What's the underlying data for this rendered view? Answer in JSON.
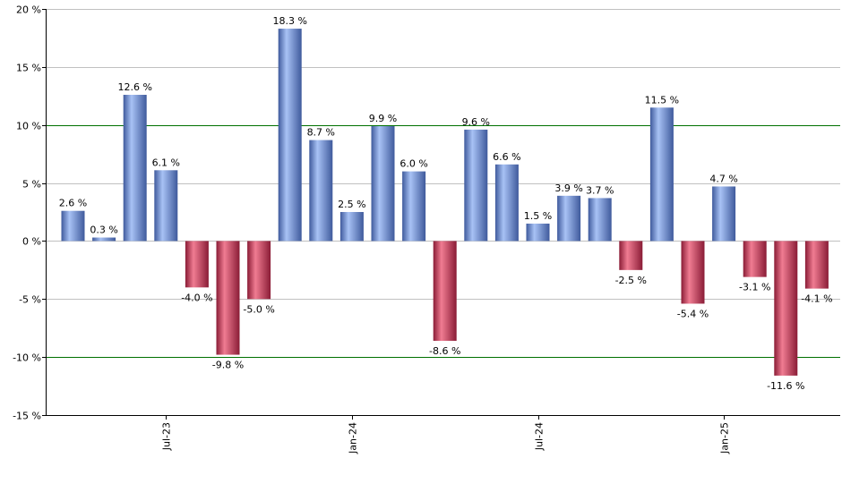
{
  "chart_data": {
    "type": "bar",
    "title": "",
    "xlabel": "",
    "ylabel": "",
    "ylim": [
      -15,
      20
    ],
    "y_ticks": [
      20,
      15,
      10,
      5,
      0,
      -5,
      -10,
      -15
    ],
    "y_tick_labels": [
      "20 %",
      "15 %",
      "10 %",
      "5 %",
      "0 %",
      "-5 %",
      "-10 %",
      "-15 %"
    ],
    "reference_lines": [
      10,
      -10
    ],
    "grid": true,
    "values": [
      2.6,
      0.3,
      12.6,
      6.1,
      -4.0,
      -9.8,
      -5.0,
      18.3,
      8.7,
      2.5,
      9.9,
      6.0,
      -8.6,
      9.6,
      6.6,
      1.5,
      3.9,
      3.7,
      -2.5,
      11.5,
      -5.4,
      4.7,
      -3.1,
      -11.6,
      -4.1
    ],
    "value_labels": [
      "2.6 %",
      "0.3 %",
      "12.6 %",
      "6.1 %",
      "-4.0 %",
      "-9.8 %",
      "-5.0 %",
      "18.3 %",
      "8.7 %",
      "2.5 %",
      "9.9 %",
      "6.0 %",
      "-8.6 %",
      "9.6 %",
      "6.6 %",
      "1.5 %",
      "3.9 %",
      "3.7 %",
      "-2.5 %",
      "11.5 %",
      "-5.4 %",
      "4.7 %",
      "-3.1 %",
      "-11.6 %",
      "-4.1 %"
    ],
    "x_tick_labels": [
      {
        "label": "Jul-23",
        "index": 3
      },
      {
        "label": "Jan-24",
        "index": 9
      },
      {
        "label": "Jul-24",
        "index": 15
      },
      {
        "label": "Jan-25",
        "index": 21
      }
    ],
    "colors": {
      "positive": "#7b9ce8",
      "positive_dark": "#3f5a9c",
      "negative": "#d94a68",
      "negative_dark": "#8a1c36",
      "grid": "#c0c0c0",
      "reference_line": "#007000",
      "axis": "#000000"
    }
  }
}
